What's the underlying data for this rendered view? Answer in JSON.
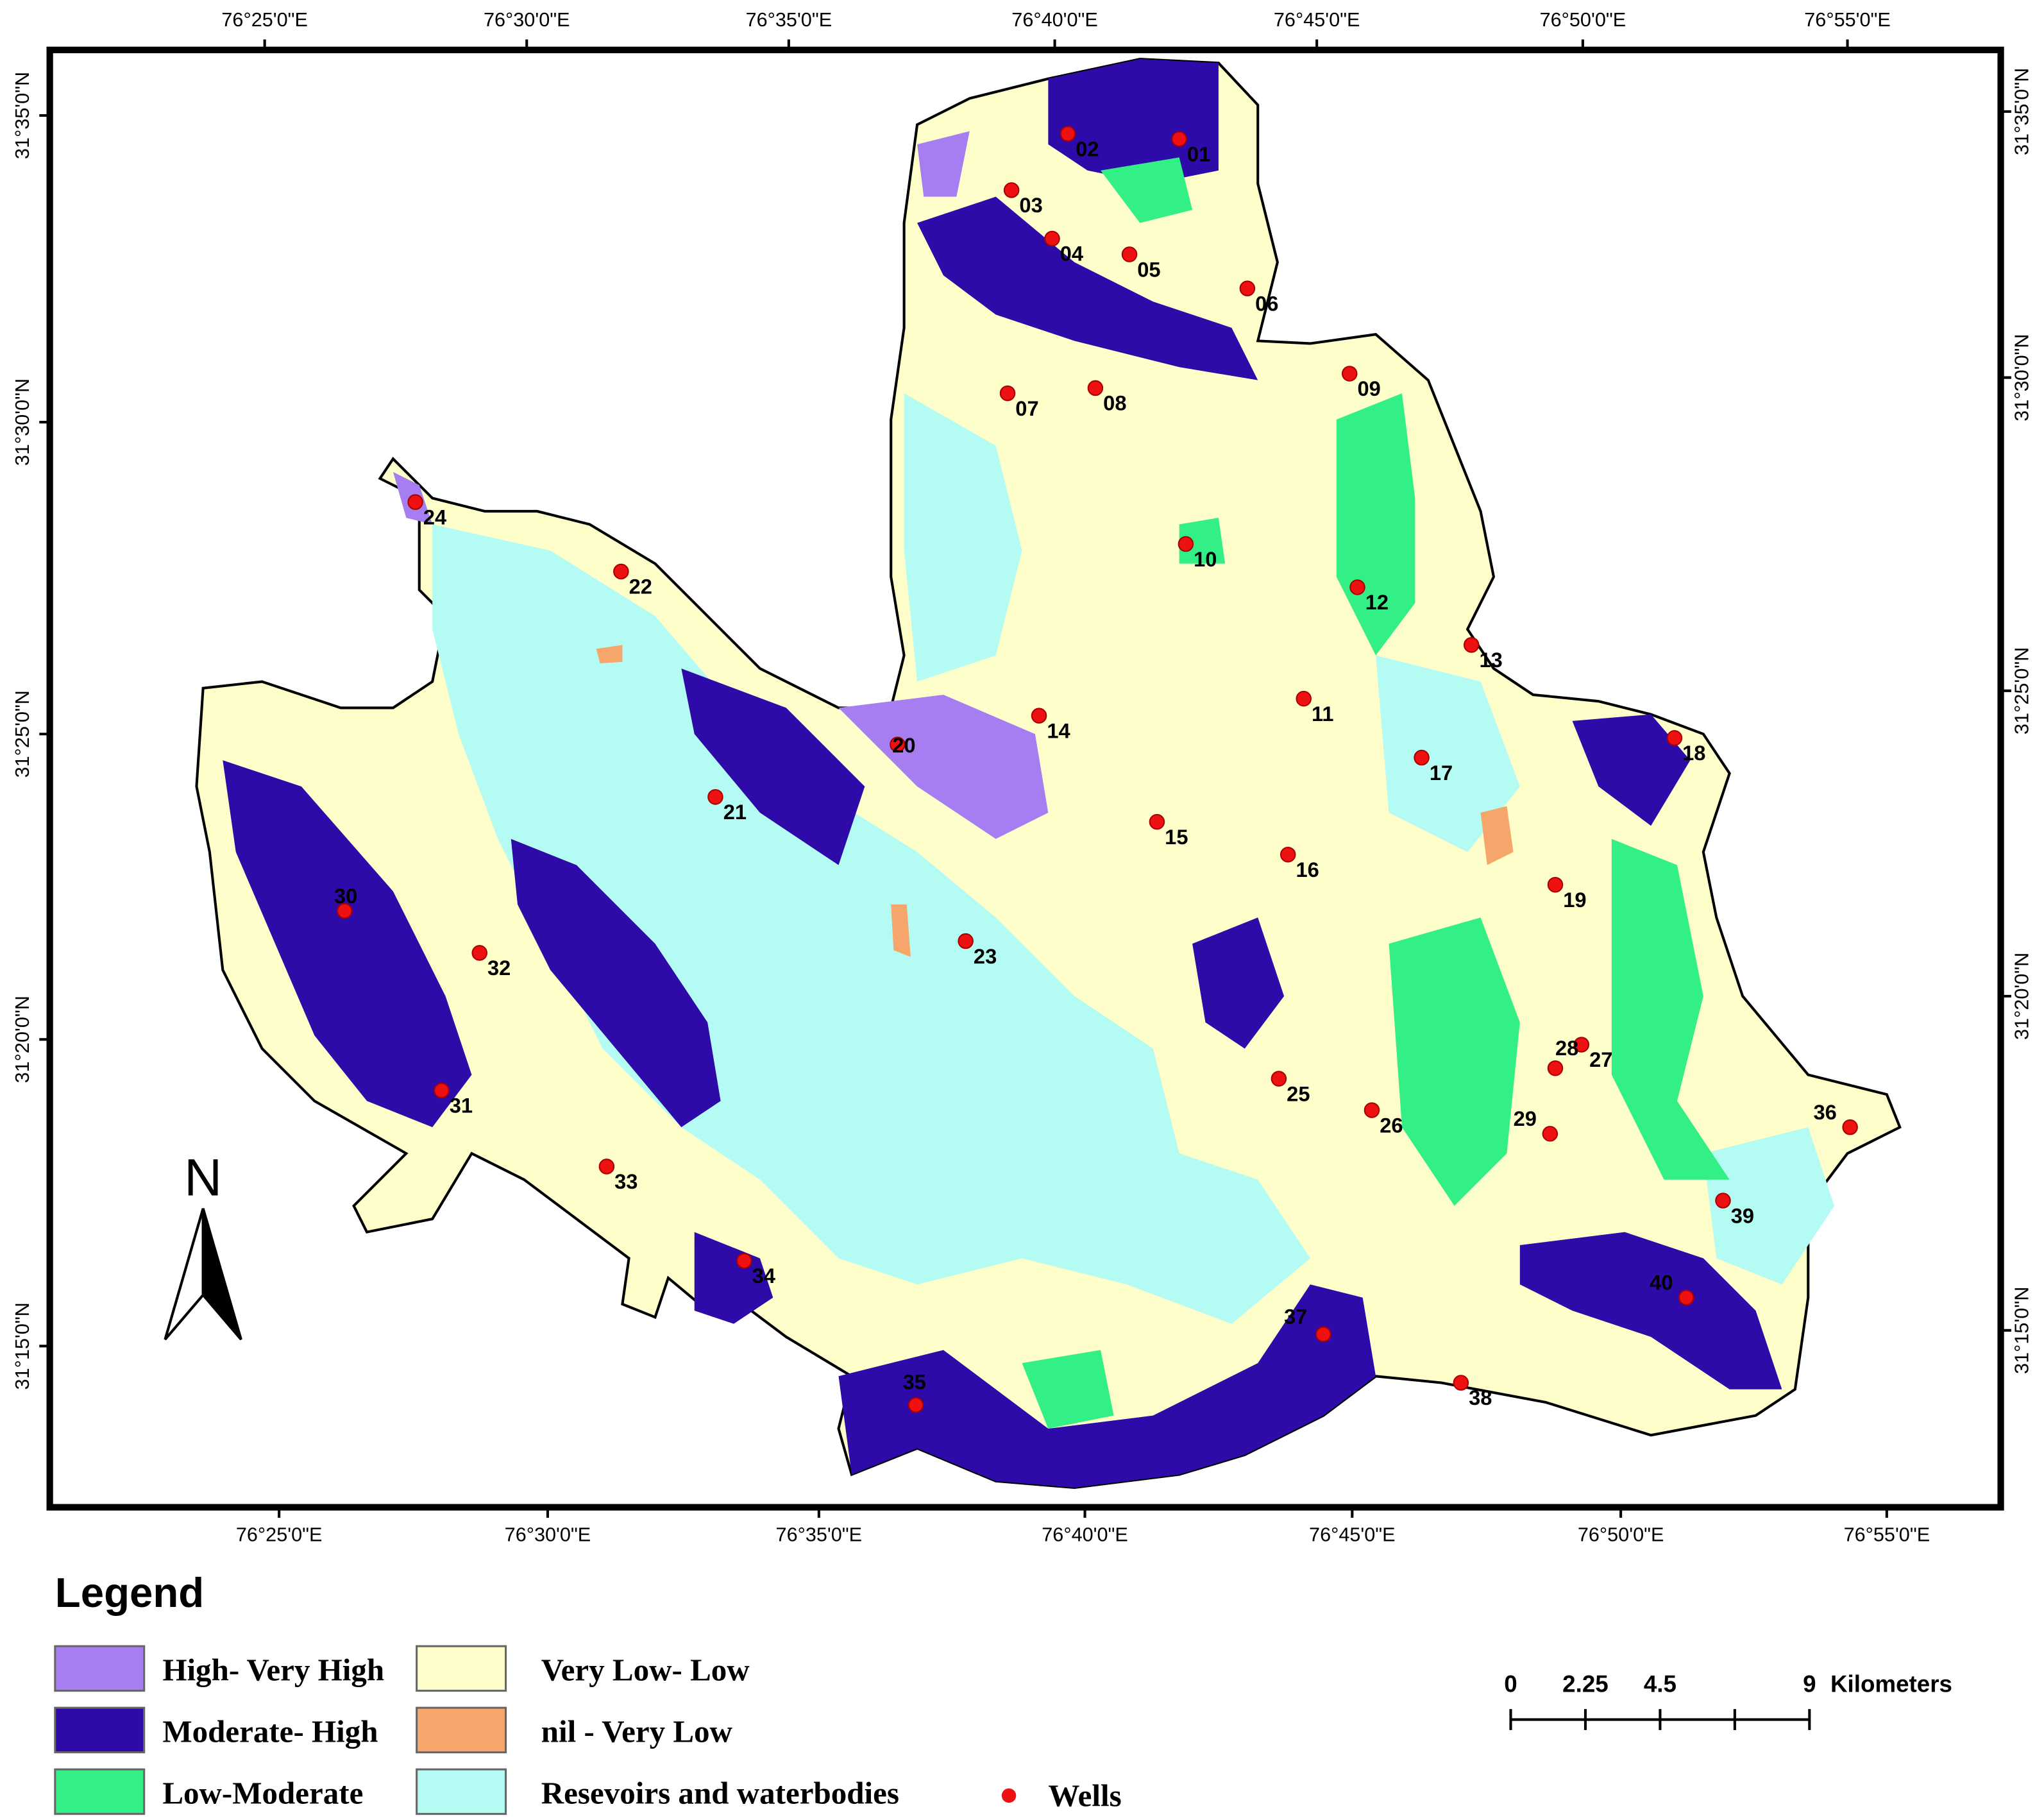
{
  "map": {
    "top_axis_labels": [
      "76°25'0\"E",
      "76°30'0\"E",
      "76°35'0\"E",
      "76°40'0\"E",
      "76°45'0\"E",
      "76°50'0\"E",
      "76°55'0\"E"
    ],
    "bottom_axis_labels": [
      "76°25'0\"E",
      "76°30'0\"E",
      "76°35'0\"E",
      "76°40'0\"E",
      "76°45'0\"E",
      "76°50'0\"E",
      "76°55'0\"E"
    ],
    "left_axis_labels": [
      "31°35'0\"N",
      "31°30'0\"N",
      "31°25'0\"N",
      "31°20'0\"N",
      "31°15'0\"N"
    ],
    "right_axis_labels": [
      "31°35'0\"N",
      "31°30'0\"N",
      "31°25'0\"N",
      "31°20'0\"N",
      "31°15'0\"N"
    ],
    "north": "N",
    "wells": [
      "01",
      "02",
      "03",
      "04",
      "05",
      "06",
      "07",
      "08",
      "09",
      "10",
      "11",
      "12",
      "13",
      "14",
      "15",
      "16",
      "17",
      "18",
      "19",
      "20",
      "21",
      "22",
      "23",
      "24",
      "25",
      "26",
      "27",
      "28",
      "29",
      "30",
      "31",
      "32",
      "33",
      "34",
      "35",
      "36",
      "37",
      "38",
      "39",
      "40"
    ]
  },
  "legend": {
    "title": "Legend",
    "items": [
      "High- Very High",
      "Moderate- High",
      "Low-Moderate",
      "Very Low- Low",
      "nil - Very Low",
      "Resevoirs and waterbodies"
    ],
    "wells": "Wells"
  },
  "scale_bar": {
    "labels": [
      0,
      2.25,
      4.5,
      9
    ],
    "unit": "Kilometers"
  }
}
